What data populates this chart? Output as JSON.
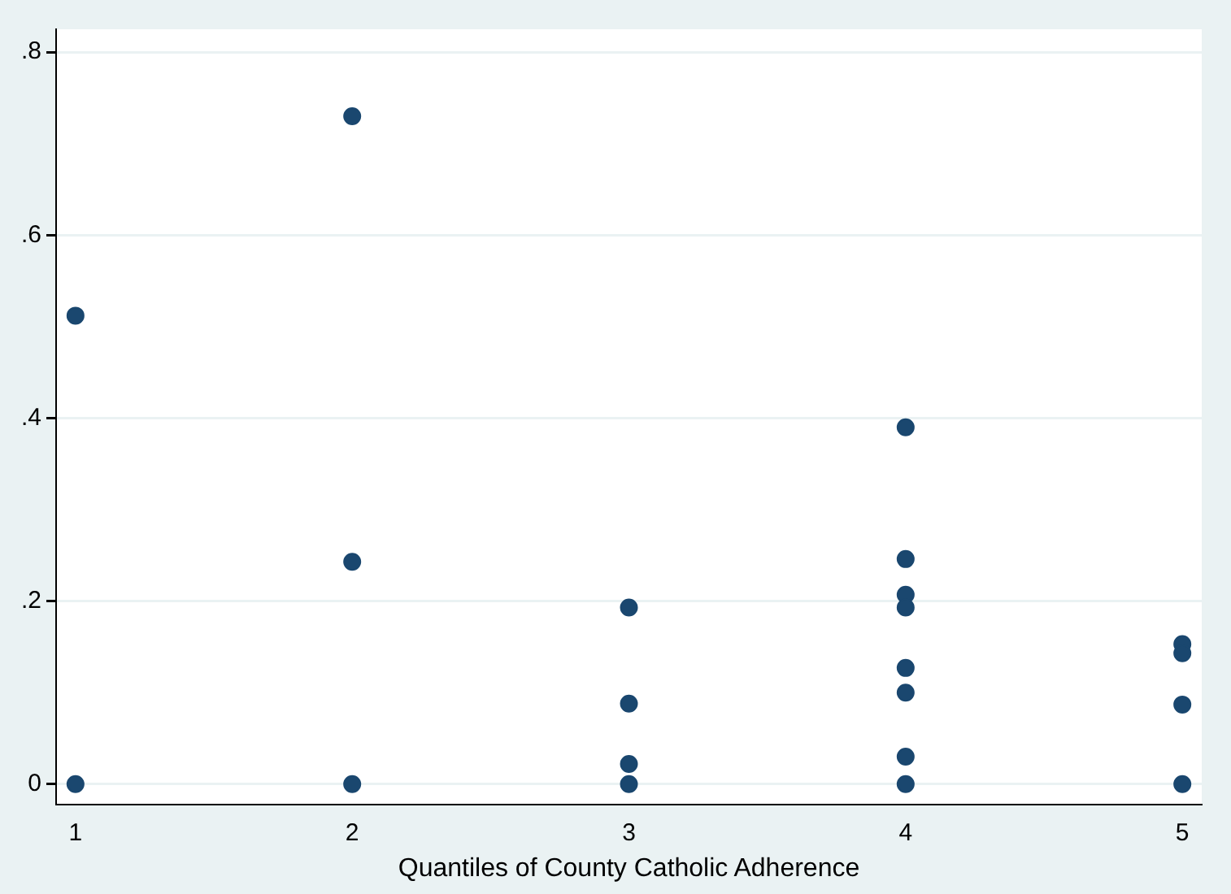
{
  "chart_data": {
    "type": "scatter",
    "xlabel": "Quantiles of County Catholic Adherence",
    "series": [
      {
        "color": "#1a476f",
        "x": [
          1,
          1,
          2,
          2,
          2,
          3,
          3,
          3,
          3,
          4,
          4,
          4,
          4,
          4,
          4,
          4,
          4,
          5,
          5,
          5,
          5
        ],
        "values": [
          0.512,
          0,
          0.73,
          0.243,
          0,
          0.193,
          0.088,
          0.022,
          0,
          0.39,
          0.246,
          0.207,
          0.193,
          0.127,
          0.1,
          0.03,
          0,
          0.153,
          0.143,
          0.087,
          0
        ]
      }
    ],
    "xlim": [
      0.93,
      5.07
    ],
    "xticks": [
      1,
      2,
      3,
      4,
      5
    ],
    "ylim": [
      -0.022,
      0.825
    ],
    "yticks": [
      0,
      {
        "value": 0.2,
        "label": ".2"
      },
      {
        "value": 0.4,
        "label": ".4"
      },
      {
        "value": 0.6,
        "label": ".6"
      },
      {
        "value": 0.8,
        "label": ".8"
      }
    ],
    "grid": "y",
    "marker": "circle",
    "legend": false
  }
}
